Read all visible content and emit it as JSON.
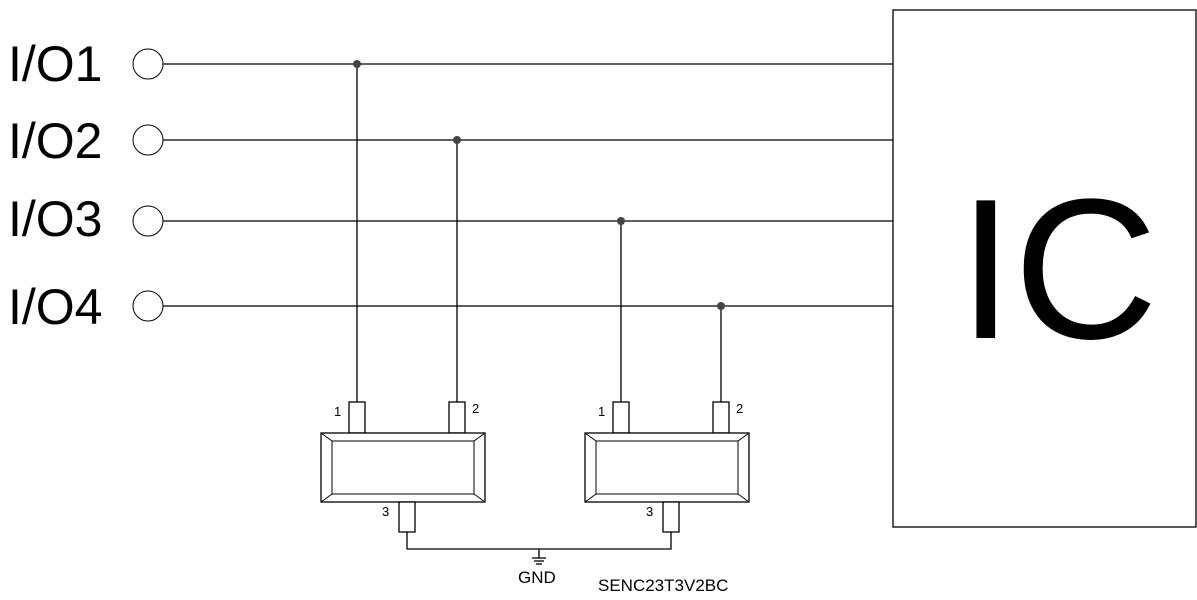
{
  "io_lines": [
    {
      "label": "I/O1"
    },
    {
      "label": "I/O2"
    },
    {
      "label": "I/O3"
    },
    {
      "label": "I/O4"
    }
  ],
  "ic_block": {
    "label": "IC"
  },
  "devices": [
    {
      "pins": [
        "1",
        "2",
        "3"
      ]
    },
    {
      "pins": [
        "1",
        "2",
        "3"
      ]
    }
  ],
  "ground_label": "GND",
  "part_number": "SENC23T3V2BC",
  "colors": {
    "line": "#000000",
    "junction": "#444444",
    "background": "#ffffff"
  }
}
